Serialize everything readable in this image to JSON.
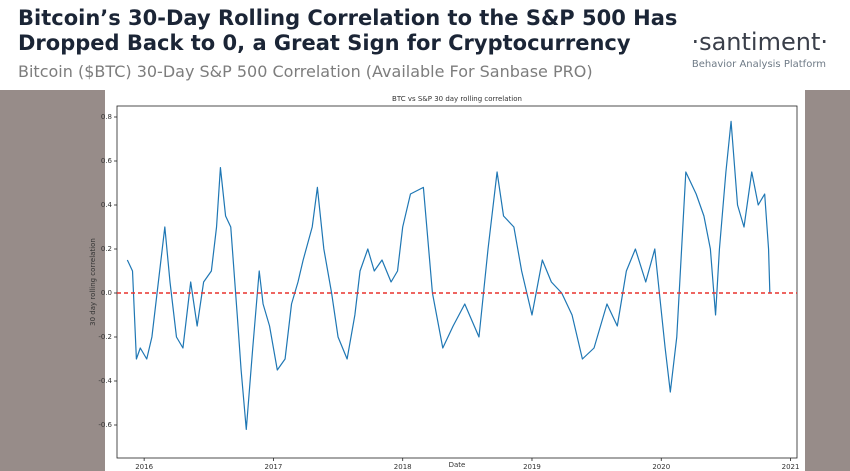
{
  "header": {
    "title_lines": [
      "Bitcoin’s 30-Day Rolling Correlation to the S&P 500 Has",
      "Dropped Back to 0, a Great Sign for Cryptocurrency"
    ],
    "subtitle": "Bitcoin ($BTC) 30-Day S&P 500 Correlation (Available For Sanbase PRO)",
    "logo": "·santiment·",
    "tagline": "Behavior Analysis Platform"
  },
  "chart_data": {
    "type": "line",
    "title": "BTC vs S&P 30 day rolling correlation",
    "x_label": "Date",
    "y_label": "30 day rolling correlation",
    "color": "#1f77b4",
    "x": [
      2015.87,
      2015.91,
      2015.94,
      2015.97,
      2016.02,
      2016.06,
      2016.13,
      2016.16,
      2016.2,
      2016.25,
      2016.3,
      2016.36,
      2016.41,
      2016.46,
      2016.52,
      2016.56,
      2016.59,
      2016.63,
      2016.67,
      2016.72,
      2016.75,
      2016.79,
      2016.84,
      2016.89,
      2016.92,
      2016.97,
      2017.03,
      2017.09,
      2017.14,
      2017.19,
      2017.23,
      2017.3,
      2017.34,
      2017.39,
      2017.45,
      2017.5,
      2017.57,
      2017.63,
      2017.67,
      2017.73,
      2017.78,
      2017.84,
      2017.91,
      2017.96,
      2018.0,
      2018.06,
      2018.16,
      2018.23,
      2018.31,
      2018.39,
      2018.48,
      2018.59,
      2018.66,
      2018.73,
      2018.78,
      2018.86,
      2018.92,
      2019.0,
      2019.08,
      2019.15,
      2019.23,
      2019.31,
      2019.39,
      2019.48,
      2019.58,
      2019.66,
      2019.73,
      2019.8,
      2019.88,
      2019.95,
      2020.03,
      2020.07,
      2020.12,
      2020.19,
      2020.27,
      2020.33,
      2020.38,
      2020.42,
      2020.45,
      2020.5,
      2020.54,
      2020.59,
      2020.64,
      2020.7,
      2020.75,
      2020.8,
      2020.83,
      2020.84
    ],
    "values": [
      0.15,
      0.1,
      -0.3,
      -0.25,
      -0.3,
      -0.2,
      0.15,
      0.3,
      0.05,
      -0.2,
      -0.25,
      0.05,
      -0.15,
      0.05,
      0.1,
      0.3,
      0.57,
      0.35,
      0.3,
      -0.1,
      -0.35,
      -0.62,
      -0.25,
      0.1,
      -0.05,
      -0.15,
      -0.35,
      -0.3,
      -0.05,
      0.05,
      0.15,
      0.3,
      0.48,
      0.2,
      0.0,
      -0.2,
      -0.3,
      -0.1,
      0.1,
      0.2,
      0.1,
      0.15,
      0.05,
      0.1,
      0.3,
      0.45,
      0.48,
      0.0,
      -0.25,
      -0.15,
      -0.05,
      -0.2,
      0.2,
      0.55,
      0.35,
      0.3,
      0.1,
      -0.1,
      0.15,
      0.05,
      0.0,
      -0.1,
      -0.3,
      -0.25,
      -0.05,
      -0.15,
      0.1,
      0.2,
      0.05,
      0.2,
      -0.25,
      -0.45,
      -0.2,
      0.55,
      0.45,
      0.35,
      0.2,
      -0.1,
      0.2,
      0.55,
      0.78,
      0.4,
      0.3,
      0.55,
      0.4,
      0.45,
      0.2,
      0.0
    ],
    "xlim": [
      2015.79,
      2021.05
    ],
    "xticks": [
      2016,
      2017,
      2018,
      2019,
      2020,
      2021
    ],
    "ylim": [
      -0.75,
      0.85
    ],
    "yticks": [
      -0.6,
      -0.4,
      -0.2,
      {
        "value": 0,
        "label": "0.0"
      },
      0.2,
      0.4,
      0.6,
      0.8
    ],
    "hline": {
      "value": 0,
      "color": "#e8322d"
    }
  }
}
